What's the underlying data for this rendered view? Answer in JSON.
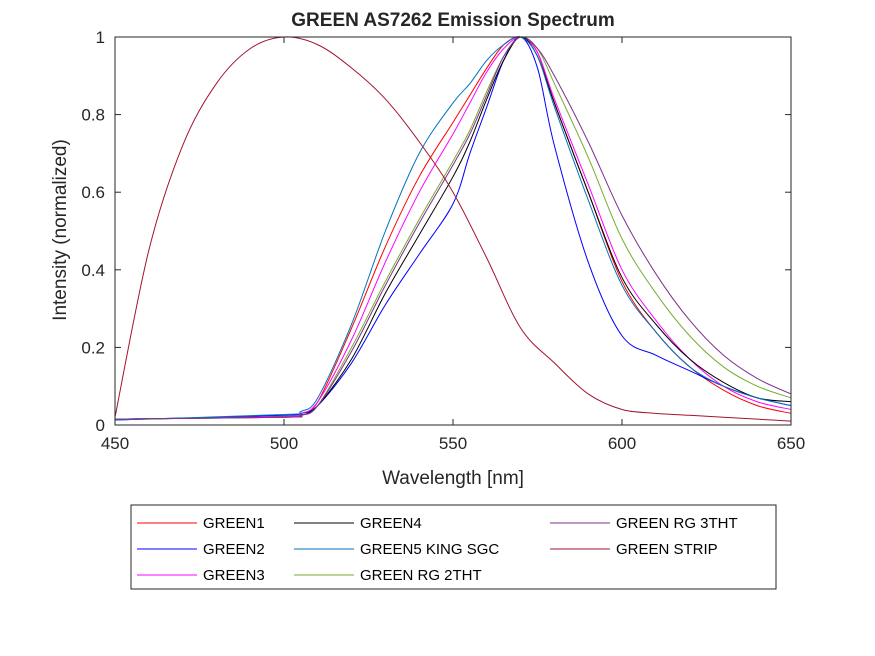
{
  "chart_data": {
    "type": "line",
    "title": "GREEN AS7262 Emission Spectrum",
    "xlabel": "Wavelength [nm]",
    "ylabel": "Intensity (normalized)",
    "xlim": [
      450,
      650
    ],
    "ylim": [
      0,
      1
    ],
    "xticks": [
      "450",
      "500",
      "550",
      "600",
      "650"
    ],
    "yticks": [
      "0",
      "0.2",
      "0.4",
      "0.6",
      "0.8",
      "1"
    ],
    "grid": false,
    "legend_position": "bottom-outside",
    "series": [
      {
        "name": "GREEN1",
        "color": "#ff0000",
        "x": [
          450,
          500,
          505,
          510,
          520,
          530,
          540,
          550,
          555,
          560,
          565,
          570,
          575,
          580,
          590,
          600,
          610,
          620,
          630,
          640,
          650
        ],
        "y": [
          0.015,
          0.022,
          0.03,
          0.06,
          0.25,
          0.46,
          0.64,
          0.78,
          0.85,
          0.92,
          0.98,
          1.0,
          0.96,
          0.83,
          0.6,
          0.37,
          0.24,
          0.15,
          0.09,
          0.05,
          0.03
        ]
      },
      {
        "name": "GREEN2",
        "color": "#0000ff",
        "x": [
          450,
          500,
          505,
          510,
          520,
          530,
          540,
          550,
          555,
          560,
          565,
          570,
          575,
          580,
          590,
          600,
          610,
          620,
          630,
          640,
          650
        ],
        "y": [
          0.013,
          0.025,
          0.03,
          0.05,
          0.16,
          0.31,
          0.44,
          0.57,
          0.7,
          0.82,
          0.94,
          1.0,
          0.92,
          0.72,
          0.42,
          0.23,
          0.18,
          0.14,
          0.1,
          0.07,
          0.05
        ]
      },
      {
        "name": "GREEN3",
        "color": "#ff00ff",
        "x": [
          450,
          500,
          505,
          510,
          520,
          530,
          540,
          550,
          555,
          560,
          565,
          570,
          575,
          580,
          590,
          600,
          610,
          620,
          630,
          640,
          650
        ],
        "y": [
          0.015,
          0.022,
          0.03,
          0.06,
          0.22,
          0.42,
          0.6,
          0.75,
          0.83,
          0.91,
          0.97,
          1.0,
          0.96,
          0.84,
          0.62,
          0.4,
          0.27,
          0.17,
          0.1,
          0.06,
          0.04
        ]
      },
      {
        "name": "GREEN4",
        "color": "#000000",
        "x": [
          450,
          500,
          505,
          510,
          520,
          530,
          540,
          550,
          555,
          560,
          565,
          570,
          575,
          580,
          590,
          600,
          610,
          620,
          630,
          640,
          650
        ],
        "y": [
          0.015,
          0.02,
          0.025,
          0.05,
          0.17,
          0.34,
          0.49,
          0.64,
          0.73,
          0.84,
          0.94,
          1.0,
          0.95,
          0.83,
          0.6,
          0.38,
          0.26,
          0.17,
          0.11,
          0.07,
          0.06
        ]
      },
      {
        "name": "GREEN5 KING SGC",
        "color": "#0072bd",
        "x": [
          450,
          500,
          505,
          510,
          520,
          530,
          540,
          550,
          555,
          560,
          565,
          570,
          575,
          580,
          590,
          600,
          610,
          620,
          630,
          640,
          650
        ],
        "y": [
          0.013,
          0.027,
          0.035,
          0.07,
          0.26,
          0.5,
          0.7,
          0.83,
          0.88,
          0.94,
          0.98,
          1.0,
          0.95,
          0.82,
          0.58,
          0.36,
          0.24,
          0.15,
          0.1,
          0.07,
          0.05
        ]
      },
      {
        "name": "GREEN RG 2THT",
        "color": "#77ac30",
        "x": [
          450,
          500,
          505,
          510,
          520,
          530,
          540,
          550,
          555,
          560,
          565,
          570,
          575,
          580,
          590,
          600,
          610,
          620,
          630,
          640,
          650
        ],
        "y": [
          0.015,
          0.02,
          0.025,
          0.05,
          0.2,
          0.37,
          0.53,
          0.68,
          0.76,
          0.86,
          0.95,
          1.0,
          0.97,
          0.88,
          0.69,
          0.48,
          0.34,
          0.23,
          0.15,
          0.1,
          0.07
        ]
      },
      {
        "name": "GREEN RG 3THT",
        "color": "#7e2f8e",
        "x": [
          450,
          500,
          505,
          510,
          520,
          530,
          540,
          550,
          555,
          560,
          565,
          570,
          575,
          580,
          590,
          600,
          610,
          620,
          630,
          640,
          650
        ],
        "y": [
          0.015,
          0.02,
          0.025,
          0.05,
          0.19,
          0.36,
          0.52,
          0.67,
          0.75,
          0.85,
          0.95,
          1.0,
          0.97,
          0.9,
          0.73,
          0.54,
          0.39,
          0.27,
          0.18,
          0.12,
          0.08
        ]
      },
      {
        "name": "GREEN STRIP",
        "color": "#a2142f",
        "x": [
          450,
          460,
          470,
          480,
          490,
          500,
          510,
          520,
          530,
          540,
          550,
          560,
          570,
          580,
          590,
          600,
          610,
          620,
          630,
          640,
          650
        ],
        "y": [
          0.02,
          0.45,
          0.72,
          0.88,
          0.97,
          1.0,
          0.98,
          0.92,
          0.84,
          0.73,
          0.6,
          0.43,
          0.25,
          0.16,
          0.08,
          0.04,
          0.03,
          0.025,
          0.02,
          0.015,
          0.01
        ]
      }
    ]
  }
}
